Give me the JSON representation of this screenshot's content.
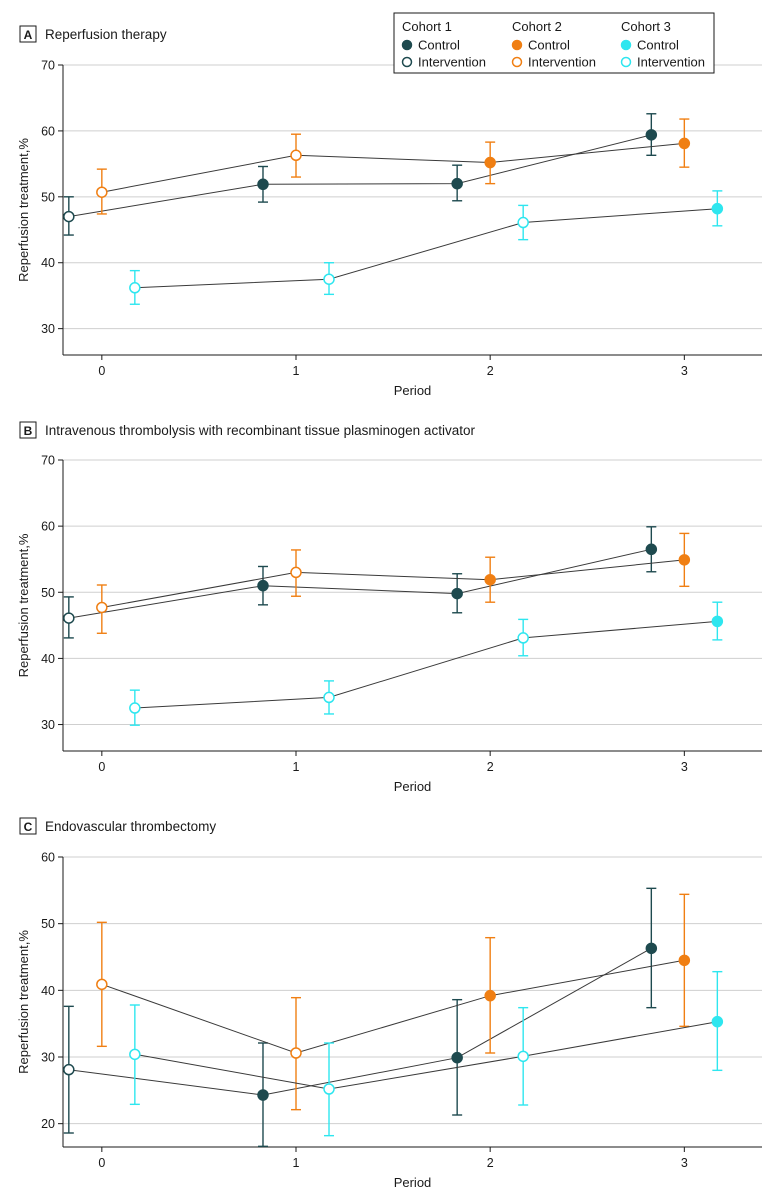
{
  "figure": {
    "legend": {
      "cohorts": [
        {
          "name": "Cohort 1",
          "color": "#1e4a4f",
          "entries": [
            {
              "label": "Control",
              "filled": true
            },
            {
              "label": "Intervention",
              "filled": false
            }
          ]
        },
        {
          "name": "Cohort 2",
          "color": "#f07f13",
          "entries": [
            {
              "label": "Control",
              "filled": true
            },
            {
              "label": "Intervention",
              "filled": false
            }
          ]
        },
        {
          "name": "Cohort 3",
          "color": "#2ee6ef",
          "entries": [
            {
              "label": "Control",
              "filled": true
            },
            {
              "label": "Intervention",
              "filled": false
            }
          ]
        }
      ]
    }
  },
  "chart_data": [
    {
      "type": "line",
      "panel_letter": "A",
      "title": "Reperfusion therapy",
      "xlabel": "Period",
      "ylabel": "Reperfusion treatment,%",
      "xlim": [
        -0.2,
        3.4
      ],
      "ylim": [
        26,
        70
      ],
      "x_ticks": [
        0,
        1,
        2,
        3
      ],
      "y_ticks": [
        30,
        40,
        50,
        60,
        70
      ],
      "series": [
        {
          "name": "Cohort 1",
          "color": "#1e4a4f",
          "x": [
            -0.17,
            0.83,
            1.83,
            2.83
          ],
          "y": [
            47.0,
            51.9,
            52.0,
            59.4
          ],
          "lower": [
            44.2,
            49.2,
            49.4,
            56.3
          ],
          "upper": [
            50.0,
            54.6,
            54.8,
            62.6
          ],
          "filled": [
            false,
            true,
            true,
            true
          ]
        },
        {
          "name": "Cohort 2",
          "color": "#f07f13",
          "x": [
            0,
            1,
            2,
            3
          ],
          "y": [
            50.7,
            56.3,
            55.2,
            58.1
          ],
          "lower": [
            47.4,
            53.0,
            52.0,
            54.5
          ],
          "upper": [
            54.2,
            59.5,
            58.3,
            61.8
          ],
          "filled": [
            false,
            false,
            true,
            true
          ]
        },
        {
          "name": "Cohort 3",
          "color": "#2ee6ef",
          "x": [
            0.17,
            1.17,
            2.17,
            3.17
          ],
          "y": [
            36.2,
            37.5,
            46.1,
            48.2
          ],
          "lower": [
            33.7,
            35.2,
            43.5,
            45.6
          ],
          "upper": [
            38.8,
            40.0,
            48.7,
            50.9
          ],
          "filled": [
            false,
            false,
            false,
            true
          ]
        }
      ]
    },
    {
      "type": "line",
      "panel_letter": "B",
      "title": "Intravenous thrombolysis with recombinant tissue plasminogen activator",
      "xlabel": "Period",
      "ylabel": "Reperfusion treatment,%",
      "xlim": [
        -0.2,
        3.4
      ],
      "ylim": [
        26,
        70
      ],
      "x_ticks": [
        0,
        1,
        2,
        3
      ],
      "y_ticks": [
        30,
        40,
        50,
        60,
        70
      ],
      "series": [
        {
          "name": "Cohort 1",
          "color": "#1e4a4f",
          "x": [
            -0.17,
            0.83,
            1.83,
            2.83
          ],
          "y": [
            46.1,
            51.0,
            49.8,
            56.5
          ],
          "lower": [
            43.1,
            48.1,
            46.9,
            53.1
          ],
          "upper": [
            49.3,
            53.9,
            52.8,
            59.9
          ],
          "filled": [
            false,
            true,
            true,
            true
          ]
        },
        {
          "name": "Cohort 2",
          "color": "#f07f13",
          "x": [
            0,
            1,
            2,
            3
          ],
          "y": [
            47.7,
            53.0,
            51.9,
            54.9
          ],
          "lower": [
            43.8,
            49.4,
            48.5,
            50.9
          ],
          "upper": [
            51.1,
            56.4,
            55.3,
            58.9
          ],
          "filled": [
            false,
            false,
            true,
            true
          ]
        },
        {
          "name": "Cohort 3",
          "color": "#2ee6ef",
          "x": [
            0.17,
            1.17,
            2.17,
            3.17
          ],
          "y": [
            32.5,
            34.1,
            43.1,
            45.6
          ],
          "lower": [
            29.9,
            31.6,
            40.4,
            42.8
          ],
          "upper": [
            35.2,
            36.6,
            45.9,
            48.5
          ],
          "filled": [
            false,
            false,
            false,
            true
          ]
        }
      ]
    },
    {
      "type": "line",
      "panel_letter": "C",
      "title": "Endovascular thrombectomy",
      "xlabel": "Period",
      "ylabel": "Reperfusion treatment,%",
      "xlim": [
        -0.2,
        3.4
      ],
      "ylim": [
        16.5,
        60
      ],
      "x_ticks": [
        0,
        1,
        2,
        3
      ],
      "y_ticks": [
        20,
        30,
        40,
        50,
        60
      ],
      "series": [
        {
          "name": "Cohort 1",
          "color": "#1e4a4f",
          "x": [
            -0.17,
            0.83,
            1.83,
            2.83
          ],
          "y": [
            28.1,
            24.3,
            29.9,
            46.3
          ],
          "lower": [
            18.6,
            16.6,
            21.3,
            37.4
          ],
          "upper": [
            37.6,
            32.1,
            38.6,
            55.3
          ],
          "filled": [
            false,
            true,
            true,
            true
          ]
        },
        {
          "name": "Cohort 2",
          "color": "#f07f13",
          "x": [
            0,
            1,
            2,
            3
          ],
          "y": [
            40.9,
            30.6,
            39.2,
            44.5
          ],
          "lower": [
            31.6,
            22.1,
            30.6,
            34.6
          ],
          "upper": [
            50.2,
            38.9,
            47.9,
            54.4
          ],
          "filled": [
            false,
            false,
            true,
            true
          ]
        },
        {
          "name": "Cohort 3",
          "color": "#2ee6ef",
          "x": [
            0.17,
            1.17,
            2.17,
            3.17
          ],
          "y": [
            30.4,
            25.2,
            30.1,
            35.3
          ],
          "lower": [
            22.9,
            18.2,
            22.8,
            28.0
          ],
          "upper": [
            37.8,
            32.1,
            37.4,
            42.8
          ],
          "filled": [
            false,
            false,
            false,
            true
          ]
        }
      ]
    }
  ]
}
